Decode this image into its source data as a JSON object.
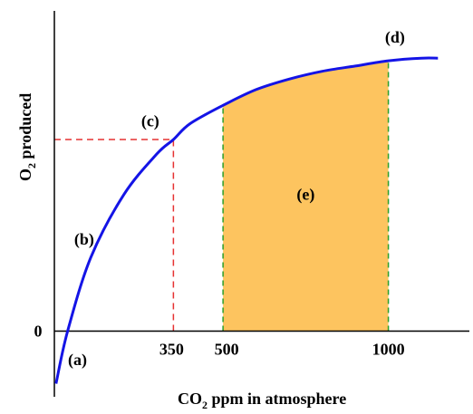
{
  "chart_data": {
    "type": "line",
    "xlabel": "CO",
    "xlabel_sub": "2",
    "xlabel_rest": "  ppm in atmosphere",
    "ylabel": "O",
    "ylabel_sub": "2",
    "ylabel_rest": " produced",
    "x_ticks": [
      {
        "value": 350,
        "label": "350"
      },
      {
        "value": 500,
        "label": "500"
      },
      {
        "value": 1000,
        "label": "1000"
      }
    ],
    "y_ticks": [
      {
        "value": 0,
        "label": "0"
      }
    ],
    "xlim": [
      -10,
      1245
    ],
    "ylim": [
      -0.25,
      1.22
    ],
    "curve": {
      "x": [
        -5,
        30,
        100,
        200,
        300,
        350,
        400,
        500,
        600,
        700,
        800,
        900,
        1000,
        1100,
        1150
      ],
      "y": [
        -0.2,
        0.0,
        0.28,
        0.52,
        0.675,
        0.73,
        0.79,
        0.86,
        0.92,
        0.96,
        0.99,
        1.01,
        1.03,
        1.04,
        1.04
      ],
      "color": "#1414e6"
    },
    "reference_lines": [
      {
        "type": "dashed",
        "color": "#e63232",
        "from_x": 350,
        "to_x": 350,
        "from_y": 0.0,
        "to_y": 0.73
      },
      {
        "type": "dashed",
        "color": "#e63232",
        "from_x": -10,
        "to_x": 350,
        "from_y": 0.73,
        "to_y": 0.73
      }
    ],
    "shaded_region": {
      "x_start": 500,
      "x_end": 1000,
      "color": "#fdc45f",
      "edge_color": "#2ca02c"
    },
    "annotations": [
      {
        "text": "(a)",
        "x": 60,
        "y": -0.13
      },
      {
        "text": "(b)",
        "x": 80,
        "y": 0.33
      },
      {
        "text": "(c)",
        "x": 280,
        "y": 0.78
      },
      {
        "text": "(d)",
        "x": 1020,
        "y": 1.1
      },
      {
        "text": "(e)",
        "x": 750,
        "y": 0.5
      }
    ]
  }
}
